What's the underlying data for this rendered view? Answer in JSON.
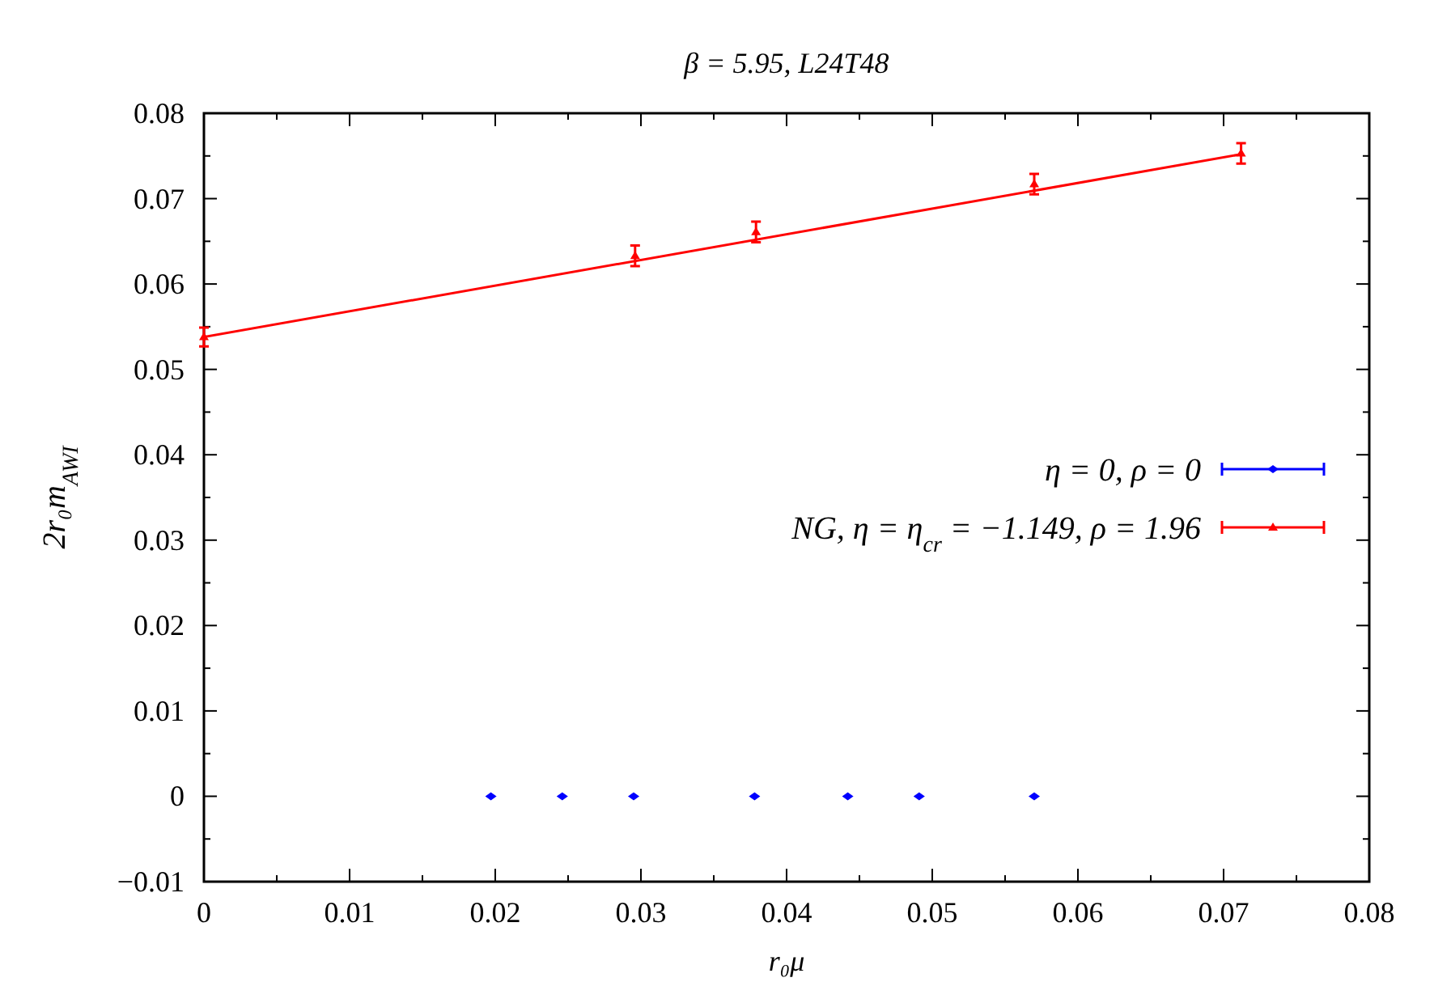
{
  "chart_data": {
    "type": "scatter",
    "title": "β = 5.95,  L24T48",
    "xlabel": "r₀μ",
    "ylabel": "2r₀m$_{AWI}$",
    "xlim": [
      0,
      0.08
    ],
    "ylim": [
      -0.01,
      0.08
    ],
    "xticks": [
      0,
      {
        "value": 0.005,
        "label": null
      },
      0.01,
      {
        "value": 0.015,
        "label": null
      },
      0.02,
      {
        "value": 0.025,
        "label": null
      },
      0.03,
      {
        "value": 0.035,
        "label": null
      },
      0.04,
      {
        "value": 0.045,
        "label": null
      },
      0.05,
      {
        "value": 0.055,
        "label": null
      },
      0.06,
      {
        "value": 0.065,
        "label": null
      },
      0.07,
      {
        "value": 0.075,
        "label": null
      },
      0.08
    ],
    "yticks": [
      {
        "value": -0.01,
        "label": "−0.01"
      },
      {
        "value": -0.005,
        "label": null
      },
      0,
      {
        "value": 0.005,
        "label": null
      },
      0.01,
      {
        "value": 0.015,
        "label": null
      },
      0.02,
      {
        "value": 0.025,
        "label": null
      },
      0.03,
      {
        "value": 0.035,
        "label": null
      },
      0.04,
      {
        "value": 0.045,
        "label": null
      },
      0.05,
      {
        "value": 0.055,
        "label": null
      },
      0.06,
      {
        "value": 0.065,
        "label": null
      },
      0.07,
      {
        "value": 0.075,
        "label": null
      },
      0.08
    ],
    "grid": false,
    "legend": "right",
    "series": [
      {
        "name": "η = 0, ρ = 0",
        "marker": "diamond",
        "color": "#0000ff",
        "x": [
          0.0197,
          0.0246,
          0.0295,
          0.0378,
          0.0442,
          0.0491,
          0.057
        ],
        "values": [
          0,
          0,
          0,
          0,
          0,
          0,
          0
        ]
      },
      {
        "name": "NG, η = η$_{cr}$ = −1.149, ρ = 1.96",
        "marker": "triangle",
        "color": "#ff0000",
        "x": [
          0,
          0.0296,
          0.0379,
          0.057,
          0.0712
        ],
        "values": [
          0.0538,
          0.0633,
          0.0661,
          0.0717,
          0.0753
        ],
        "errors": [
          0.0011,
          0.0012,
          0.0012,
          0.0012,
          0.0012
        ]
      },
      {
        "type": "line",
        "marker": "none",
        "color": "#ff0000",
        "x": [
          0,
          0.0712
        ],
        "values": [
          0.0538,
          0.0752
        ]
      }
    ]
  }
}
